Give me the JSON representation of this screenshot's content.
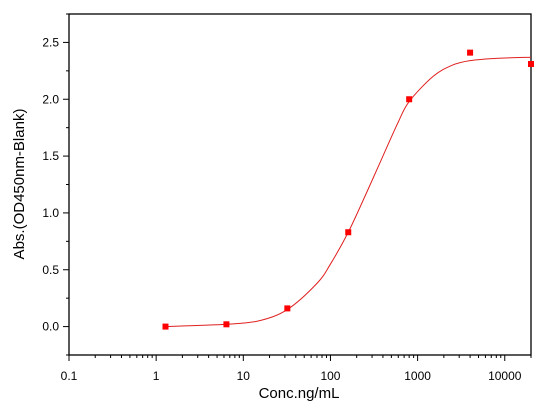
{
  "chart_data": {
    "type": "scatter",
    "title": "",
    "xlabel": "Conc.ng/mL",
    "ylabel": "Abs.(OD450nm-Blank)",
    "x_scale": "log",
    "xlim": [
      0.1,
      20000
    ],
    "ylim": [
      -0.25,
      2.75
    ],
    "x_ticks": [
      {
        "value": 0.1,
        "label": "0.1"
      },
      {
        "value": 1,
        "label": "1"
      },
      {
        "value": 10,
        "label": "10"
      },
      {
        "value": 100,
        "label": "100"
      },
      {
        "value": 1000,
        "label": "1000"
      },
      {
        "value": 10000,
        "label": "10000"
      }
    ],
    "y_ticks": [
      {
        "value": 0.0,
        "label": "0.0"
      },
      {
        "value": 0.5,
        "label": "0.5"
      },
      {
        "value": 1.0,
        "label": "1.0"
      },
      {
        "value": 1.5,
        "label": "1.5"
      },
      {
        "value": 2.0,
        "label": "2.0"
      },
      {
        "value": 2.5,
        "label": "2.5"
      }
    ],
    "grid": false,
    "series": [
      {
        "marker": "square",
        "color": "#ff0000",
        "x": [
          1.28,
          6.4,
          32,
          160,
          800,
          4000,
          20000
        ],
        "y": [
          0.0,
          0.02,
          0.16,
          0.83,
          2.0,
          2.41,
          2.31
        ]
      }
    ],
    "fit_curve": {
      "color": "#e02020",
      "x": [
        1.28,
        3,
        6.4,
        15,
        32,
        70,
        100,
        160,
        250,
        400,
        600,
        800,
        1500,
        2500,
        4000,
        8000,
        20000
      ],
      "y": [
        0.0,
        0.01,
        0.02,
        0.05,
        0.15,
        0.38,
        0.55,
        0.83,
        1.15,
        1.5,
        1.8,
        1.98,
        2.2,
        2.3,
        2.34,
        2.36,
        2.37
      ]
    }
  }
}
